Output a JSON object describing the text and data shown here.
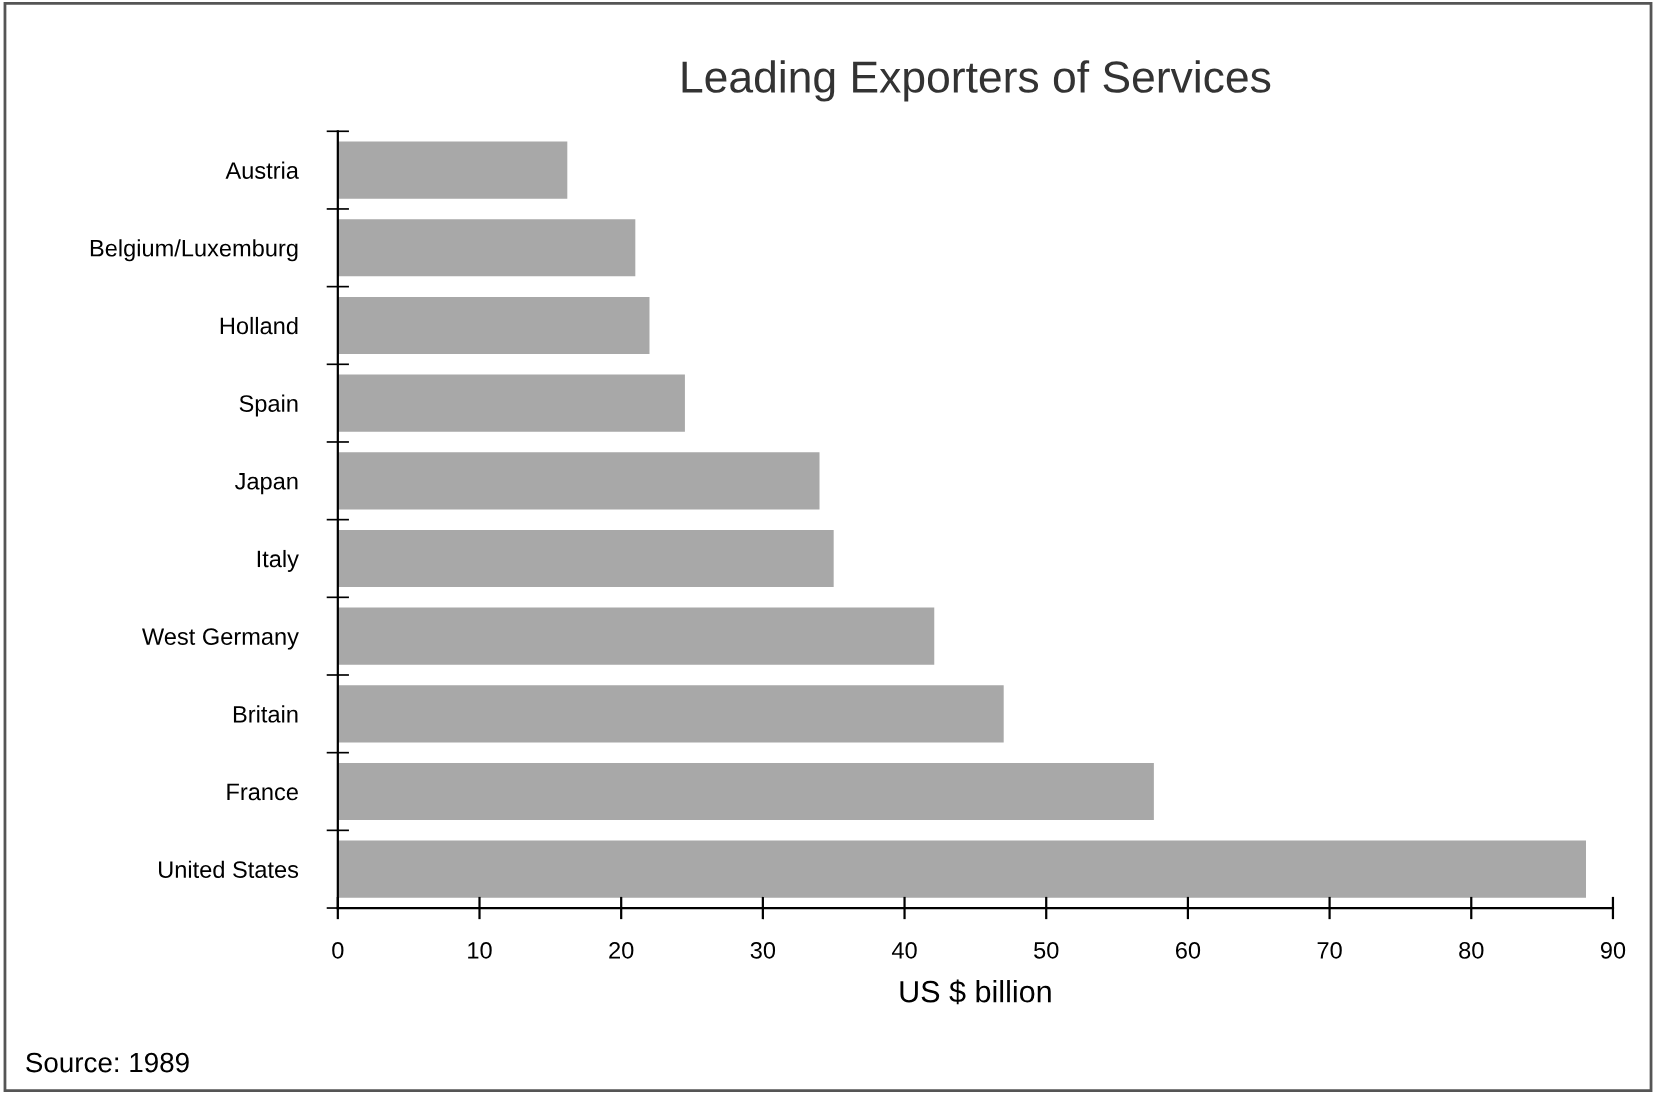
{
  "chart_data": {
    "type": "bar",
    "orientation": "horizontal",
    "title": "Leading Exporters of Services",
    "xlabel": "US $ billion",
    "categories": [
      "Austria",
      "Belgium/Luxemburg",
      "Holland",
      "Spain",
      "Japan",
      "Italy",
      "West Germany",
      "Britain",
      "France",
      "United States"
    ],
    "values": [
      16.1,
      20.9,
      21.9,
      24.4,
      33.9,
      34.9,
      42.0,
      46.9,
      57.5,
      88.0
    ],
    "color": "#a8a8a8",
    "xlim": [
      0,
      90
    ],
    "xticks": [
      0,
      10,
      20,
      30,
      40,
      50,
      60,
      70,
      80,
      90
    ],
    "grid": false,
    "legend": false,
    "annotations": [
      "Source: 1989"
    ]
  }
}
